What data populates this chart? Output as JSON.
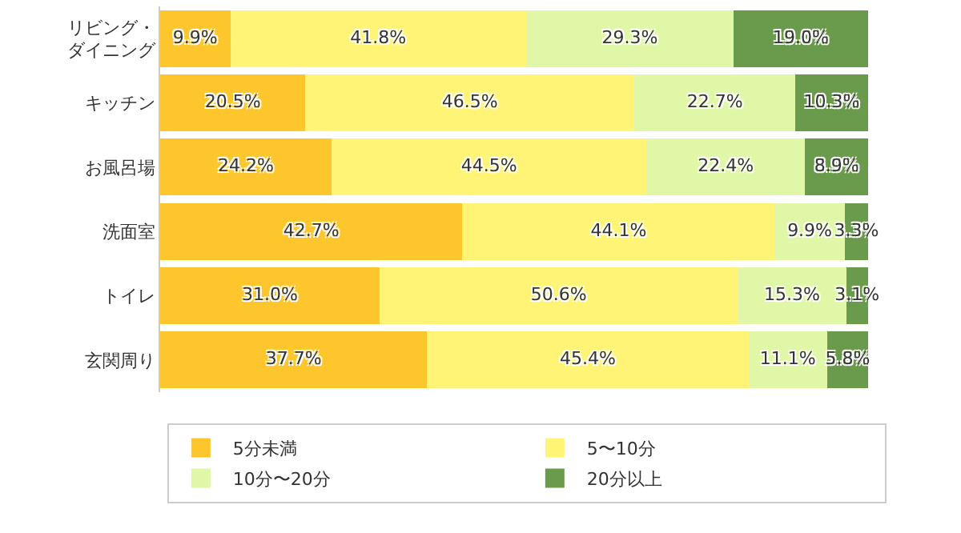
{
  "chart_data": {
    "type": "bar",
    "orientation": "horizontal",
    "stacked": true,
    "xlim": [
      0,
      100
    ],
    "tick_labels": "y",
    "grid": false,
    "legend": "bottom",
    "categories": [
      "リビング・ダイニング",
      "キッチン",
      "お風呂場",
      "洗面室",
      "トイレ",
      "玄関周り"
    ],
    "series": [
      {
        "name": "5分未満",
        "color": "#fdc62c",
        "values": [
          9.9,
          20.5,
          24.2,
          42.7,
          31.0,
          37.7
        ],
        "value_labels": [
          "9.9%",
          "20.5%",
          "24.2%",
          "42.7%",
          "31.0%",
          "37.7%"
        ]
      },
      {
        "name": "5〜10分",
        "color": "#fff476",
        "values": [
          41.8,
          46.5,
          44.5,
          44.1,
          50.6,
          45.4
        ],
        "value_labels": [
          "41.8%",
          "46.5%",
          "44.5%",
          "44.1%",
          "50.6%",
          "45.4%"
        ]
      },
      {
        "name": "10分〜20分",
        "color": "#dff7a6",
        "values": [
          29.3,
          22.7,
          22.4,
          9.9,
          15.3,
          11.1
        ],
        "value_labels": [
          "29.3%",
          "22.7%",
          "22.4%",
          "9.9%",
          "15.3%",
          "11.1%"
        ]
      },
      {
        "name": "20分以上",
        "color": "#6a9b4c",
        "values": [
          19.0,
          10.3,
          8.9,
          3.3,
          3.1,
          5.8
        ],
        "value_labels": [
          "19.0%",
          "10.3%",
          "8.9%",
          "3.3%",
          "3.1%",
          "5.8%"
        ]
      }
    ]
  }
}
